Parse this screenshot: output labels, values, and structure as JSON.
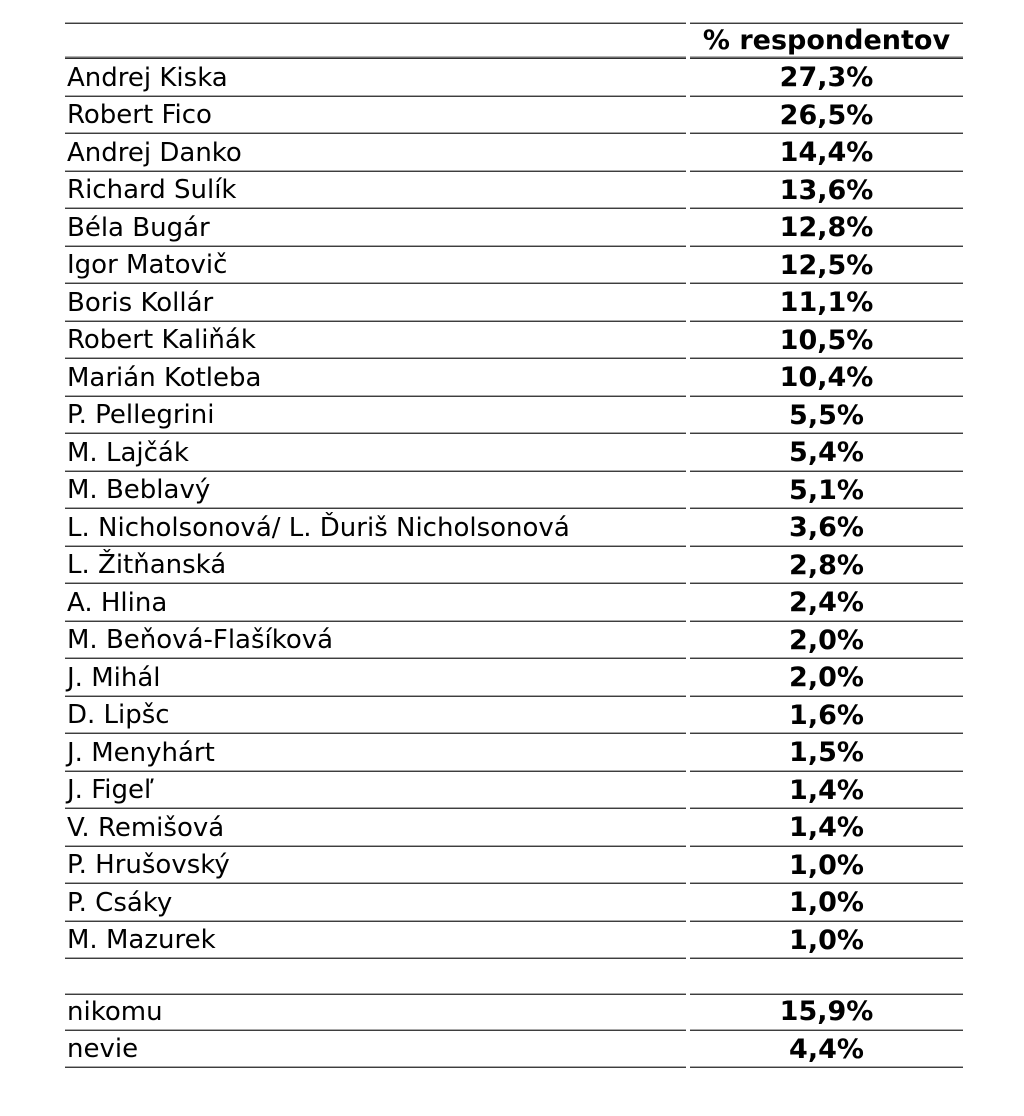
{
  "table": {
    "header": {
      "name_label": "",
      "pct_label": "% respondentov"
    },
    "rows": [
      {
        "name": "Andrej Kiska",
        "pct": "27,3%"
      },
      {
        "name": "Robert Fico",
        "pct": "26,5%"
      },
      {
        "name": "Andrej Danko",
        "pct": "14,4%"
      },
      {
        "name": "Richard Sulík",
        "pct": "13,6%"
      },
      {
        "name": "Béla Bugár",
        "pct": "12,8%"
      },
      {
        "name": "Igor Matovič",
        "pct": "12,5%"
      },
      {
        "name": "Boris Kollár",
        "pct": "11,1%"
      },
      {
        "name": "Robert Kaliňák",
        "pct": "10,5%"
      },
      {
        "name": "Marián Kotleba",
        "pct": "10,4%"
      },
      {
        "name": "P. Pellegrini",
        "pct": "5,5%"
      },
      {
        "name": "M. Lajčák",
        "pct": "5,4%"
      },
      {
        "name": "M. Beblavý",
        "pct": "5,1%"
      },
      {
        "name": "L. Nicholsonová/ L. Ďuriš Nicholsonová",
        "pct": "3,6%"
      },
      {
        "name": "L. Žitňanská",
        "pct": "2,8%"
      },
      {
        "name": "A. Hlina",
        "pct": "2,4%"
      },
      {
        "name": "M. Beňová-Flašíková",
        "pct": "2,0%"
      },
      {
        "name": "J. Mihál",
        "pct": "2,0%"
      },
      {
        "name": "D. Lipšc",
        "pct": "1,6%"
      },
      {
        "name": "J. Menyhárt",
        "pct": "1,5%"
      },
      {
        "name": "J. Figeľ",
        "pct": "1,4%"
      },
      {
        "name": "V. Remišová",
        "pct": "1,4%"
      },
      {
        "name": "P. Hrušovský",
        "pct": "1,0%"
      },
      {
        "name": "P. Csáky",
        "pct": "1,0%"
      },
      {
        "name": "M. Mazurek",
        "pct": "1,0%"
      }
    ],
    "summary_rows": [
      {
        "name": "nikomu",
        "pct": "15,9%"
      },
      {
        "name": "nevie",
        "pct": "4,4%"
      }
    ]
  },
  "colors": {
    "text": "#000000",
    "rule_light": "#a9a9a9",
    "rule_dark": "#3e3e3e",
    "background": "#ffffff"
  },
  "chart_data": {
    "type": "table",
    "title": "",
    "columns": [
      "",
      "% respondentov"
    ],
    "categories": [
      "Andrej Kiska",
      "Robert Fico",
      "Andrej Danko",
      "Richard Sulík",
      "Béla Bugár",
      "Igor Matovič",
      "Boris Kollár",
      "Robert Kaliňák",
      "Marián Kotleba",
      "P. Pellegrini",
      "M. Lajčák",
      "M. Beblavý",
      "L. Nicholsonová/ L. Ďuriš Nicholsonová",
      "L. Žitňanská",
      "A. Hlina",
      "M. Beňová-Flašíková",
      "J. Mihál",
      "D. Lipšc",
      "J. Menyhárt",
      "J. Figeľ",
      "V. Remišová",
      "P. Hrušovský",
      "P. Csáky",
      "M. Mazurek"
    ],
    "values": [
      27.3,
      26.5,
      14.4,
      13.6,
      12.8,
      12.5,
      11.1,
      10.5,
      10.4,
      5.5,
      5.4,
      5.1,
      3.6,
      2.8,
      2.4,
      2.0,
      2.0,
      1.6,
      1.5,
      1.4,
      1.4,
      1.0,
      1.0,
      1.0
    ],
    "extra_categories": [
      "nikomu",
      "nevie"
    ],
    "extra_values": [
      15.9,
      4.4
    ],
    "value_format": "percent, comma decimal separator",
    "layout": "two-column table, names left-aligned, bold percentages centered, horizontal rules between rows"
  }
}
